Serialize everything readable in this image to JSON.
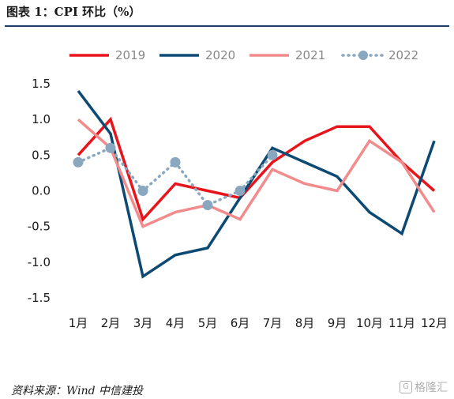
{
  "header": {
    "title": "图表 1：CPI 环比（%）"
  },
  "footer": {
    "source": "资料来源：Wind    中信建投"
  },
  "watermark": {
    "text": "格隆汇",
    "icon": "G"
  },
  "chart_data": {
    "type": "line",
    "categories": [
      "1月",
      "2月",
      "3月",
      "4月",
      "5月",
      "6月",
      "7月",
      "8月",
      "9月",
      "10月",
      "11月",
      "12月"
    ],
    "series": [
      {
        "name": "2019",
        "color": "#e8141b",
        "style": "solid",
        "values": [
          0.5,
          1.0,
          -0.4,
          0.1,
          0.0,
          -0.1,
          0.4,
          0.7,
          0.9,
          0.9,
          0.4,
          0.0
        ]
      },
      {
        "name": "2020",
        "color": "#0d4a73",
        "style": "solid",
        "values": [
          1.4,
          0.8,
          -1.2,
          -0.9,
          -0.8,
          -0.1,
          0.6,
          0.4,
          0.2,
          -0.3,
          -0.6,
          0.7
        ]
      },
      {
        "name": "2021",
        "color": "#f28b8b",
        "style": "solid",
        "values": [
          1.0,
          0.6,
          -0.5,
          -0.3,
          -0.2,
          -0.4,
          0.3,
          0.1,
          0.0,
          0.7,
          0.4,
          -0.3
        ]
      },
      {
        "name": "2022",
        "color": "#8aa7c0",
        "style": "dotted-markers",
        "values": [
          0.4,
          0.6,
          0.0,
          0.4,
          -0.2,
          0.0,
          0.5,
          null,
          null,
          null,
          null,
          null
        ]
      }
    ],
    "yticks": [
      "1.5",
      "1.0",
      "0.5",
      "0.0",
      "-0.5",
      "-1.0",
      "-1.5"
    ],
    "ylim": [
      -1.5,
      1.5
    ],
    "legend": "top",
    "grid": false
  }
}
